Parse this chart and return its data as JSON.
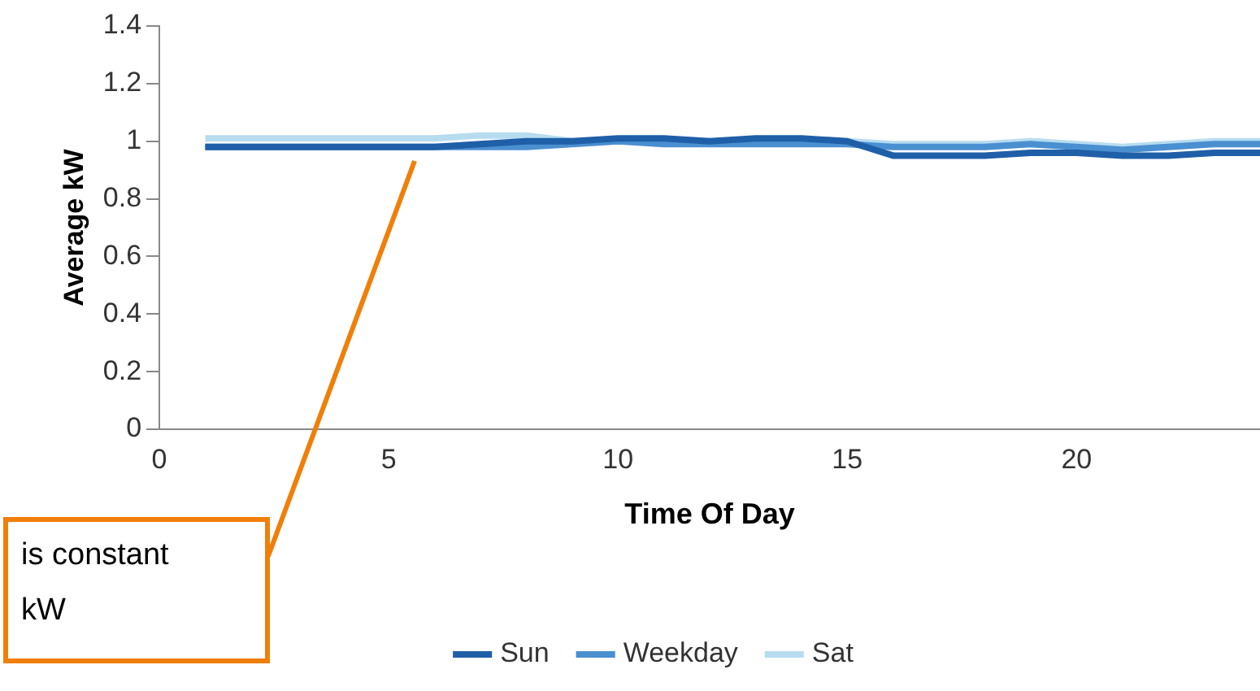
{
  "chart_data": {
    "type": "line",
    "ylabel": "Average kW",
    "xlabel": "Time Of Day",
    "x": [
      1,
      2,
      3,
      4,
      5,
      6,
      7,
      8,
      9,
      10,
      11,
      12,
      13,
      14,
      15,
      16,
      17,
      18,
      19,
      20,
      21,
      22,
      23,
      24
    ],
    "xlim": [
      0,
      24
    ],
    "xticks": [
      0,
      5,
      10,
      15,
      20
    ],
    "ylim": [
      0,
      1.4
    ],
    "yticks": [
      0,
      0.2,
      0.4,
      0.6,
      0.8,
      1,
      1.2,
      1.4
    ],
    "grid": false,
    "legend": "bottom",
    "marker": "none",
    "line_style": "solid",
    "series": [
      {
        "name": "Sun",
        "color": "#1f5fa8",
        "values": [
          0.98,
          0.98,
          0.98,
          0.98,
          0.98,
          0.98,
          0.99,
          1.0,
          1.0,
          1.01,
          1.01,
          1.0,
          1.01,
          1.01,
          1.0,
          0.95,
          0.95,
          0.95,
          0.96,
          0.96,
          0.95,
          0.95,
          0.96,
          0.96
        ]
      },
      {
        "name": "Weekday",
        "color": "#4a8fd0",
        "values": [
          0.98,
          0.98,
          0.98,
          0.98,
          0.98,
          0.98,
          0.98,
          0.98,
          0.99,
          1.0,
          0.99,
          0.99,
          0.99,
          0.99,
          0.99,
          0.98,
          0.98,
          0.98,
          0.99,
          0.98,
          0.97,
          0.98,
          0.99,
          0.99
        ]
      },
      {
        "name": "Sat",
        "color": "#b7dcef",
        "values": [
          1.01,
          1.01,
          1.01,
          1.01,
          1.01,
          1.01,
          1.02,
          1.02,
          1.0,
          1.0,
          1.0,
          1.0,
          1.0,
          1.0,
          1.0,
          0.99,
          0.99,
          0.99,
          1.0,
          0.99,
          0.98,
          0.99,
          1.0,
          1.0
        ]
      }
    ],
    "annotations": [
      "is constant\nkW"
    ]
  }
}
